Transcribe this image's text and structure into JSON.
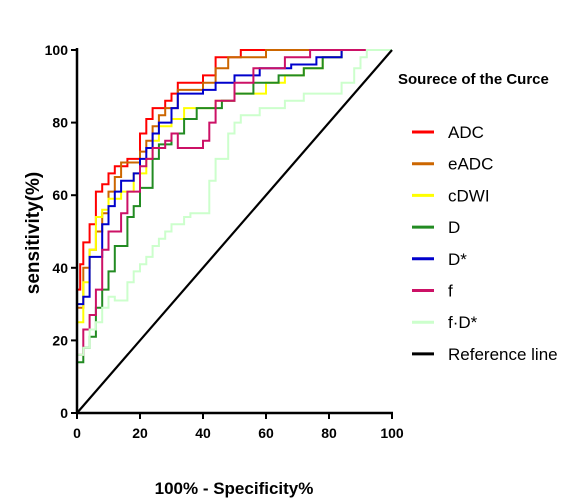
{
  "chart_data": {
    "type": "line",
    "title": "",
    "xlabel": "100% - Specificity%",
    "ylabel": "sensitivity(%)",
    "xlim": [
      0,
      100
    ],
    "ylim": [
      0,
      100
    ],
    "xticks": [
      0,
      20,
      40,
      60,
      80,
      100
    ],
    "yticks": [
      0,
      20,
      40,
      60,
      80,
      100
    ],
    "legend_title": "Sourece of the Curce",
    "legend_position": "right",
    "series": [
      {
        "name": "ADC",
        "color": "#ff0000",
        "points": [
          [
            0,
            0
          ],
          [
            0,
            34
          ],
          [
            1,
            34
          ],
          [
            1,
            41
          ],
          [
            2,
            41
          ],
          [
            2,
            47
          ],
          [
            4,
            47
          ],
          [
            4,
            52
          ],
          [
            6,
            52
          ],
          [
            6,
            61
          ],
          [
            8,
            61
          ],
          [
            8,
            63
          ],
          [
            10,
            63
          ],
          [
            10,
            66
          ],
          [
            12,
            66
          ],
          [
            12,
            68
          ],
          [
            16,
            68
          ],
          [
            16,
            70
          ],
          [
            20,
            70
          ],
          [
            20,
            77
          ],
          [
            22,
            77
          ],
          [
            22,
            81
          ],
          [
            24,
            81
          ],
          [
            24,
            84
          ],
          [
            28,
            84
          ],
          [
            28,
            86
          ],
          [
            30,
            86
          ],
          [
            30,
            88
          ],
          [
            32,
            88
          ],
          [
            32,
            91
          ],
          [
            40,
            91
          ],
          [
            40,
            93
          ],
          [
            44,
            93
          ],
          [
            44,
            98
          ],
          [
            52,
            98
          ],
          [
            52,
            100
          ],
          [
            100,
            100
          ]
        ]
      },
      {
        "name": "eADC",
        "color": "#cc6600",
        "points": [
          [
            0,
            0
          ],
          [
            0,
            29
          ],
          [
            2,
            29
          ],
          [
            2,
            40
          ],
          [
            4,
            40
          ],
          [
            4,
            45
          ],
          [
            6,
            45
          ],
          [
            6,
            50
          ],
          [
            8,
            50
          ],
          [
            8,
            55
          ],
          [
            10,
            55
          ],
          [
            10,
            61
          ],
          [
            12,
            61
          ],
          [
            12,
            65
          ],
          [
            14,
            65
          ],
          [
            14,
            69
          ],
          [
            20,
            69
          ],
          [
            20,
            72
          ],
          [
            22,
            72
          ],
          [
            22,
            75
          ],
          [
            24,
            75
          ],
          [
            24,
            79
          ],
          [
            26,
            79
          ],
          [
            26,
            82
          ],
          [
            28,
            82
          ],
          [
            28,
            84
          ],
          [
            32,
            84
          ],
          [
            32,
            89
          ],
          [
            40,
            89
          ],
          [
            40,
            91
          ],
          [
            44,
            91
          ],
          [
            44,
            95
          ],
          [
            48,
            95
          ],
          [
            48,
            98
          ],
          [
            60,
            98
          ],
          [
            60,
            100
          ],
          [
            100,
            100
          ]
        ]
      },
      {
        "name": "cDWI",
        "color": "#ffff00",
        "points": [
          [
            0,
            0
          ],
          [
            0,
            25
          ],
          [
            2,
            25
          ],
          [
            2,
            36
          ],
          [
            4,
            36
          ],
          [
            4,
            45
          ],
          [
            6,
            45
          ],
          [
            6,
            54
          ],
          [
            8,
            54
          ],
          [
            8,
            56
          ],
          [
            10,
            56
          ],
          [
            10,
            59
          ],
          [
            14,
            59
          ],
          [
            14,
            61
          ],
          [
            18,
            61
          ],
          [
            18,
            66
          ],
          [
            22,
            66
          ],
          [
            22,
            70
          ],
          [
            24,
            70
          ],
          [
            24,
            75
          ],
          [
            26,
            75
          ],
          [
            26,
            79
          ],
          [
            30,
            79
          ],
          [
            30,
            81
          ],
          [
            34,
            81
          ],
          [
            34,
            84
          ],
          [
            44,
            84
          ],
          [
            44,
            86
          ],
          [
            50,
            86
          ],
          [
            50,
            88
          ],
          [
            60,
            88
          ],
          [
            60,
            91
          ],
          [
            66,
            91
          ],
          [
            66,
            93
          ],
          [
            72,
            93
          ],
          [
            72,
            95
          ],
          [
            78,
            95
          ],
          [
            78,
            98
          ],
          [
            84,
            98
          ],
          [
            84,
            100
          ],
          [
            100,
            100
          ]
        ]
      },
      {
        "name": "D",
        "color": "#228b22",
        "points": [
          [
            0,
            0
          ],
          [
            0,
            14
          ],
          [
            2,
            14
          ],
          [
            2,
            18
          ],
          [
            4,
            18
          ],
          [
            4,
            21
          ],
          [
            6,
            21
          ],
          [
            6,
            29
          ],
          [
            8,
            29
          ],
          [
            8,
            34
          ],
          [
            10,
            34
          ],
          [
            10,
            39
          ],
          [
            12,
            39
          ],
          [
            12,
            46
          ],
          [
            16,
            46
          ],
          [
            16,
            54
          ],
          [
            18,
            54
          ],
          [
            18,
            57
          ],
          [
            20,
            57
          ],
          [
            20,
            62
          ],
          [
            24,
            62
          ],
          [
            24,
            70
          ],
          [
            26,
            70
          ],
          [
            26,
            74
          ],
          [
            30,
            74
          ],
          [
            30,
            77
          ],
          [
            34,
            77
          ],
          [
            34,
            81
          ],
          [
            38,
            81
          ],
          [
            38,
            84
          ],
          [
            46,
            84
          ],
          [
            46,
            86
          ],
          [
            50,
            86
          ],
          [
            50,
            88
          ],
          [
            56,
            88
          ],
          [
            56,
            91
          ],
          [
            64,
            91
          ],
          [
            64,
            93
          ],
          [
            72,
            93
          ],
          [
            72,
            95
          ],
          [
            78,
            95
          ],
          [
            78,
            98
          ],
          [
            84,
            98
          ],
          [
            84,
            100
          ],
          [
            100,
            100
          ]
        ]
      },
      {
        "name": "D*",
        "color": "#0000cc",
        "points": [
          [
            0,
            0
          ],
          [
            0,
            30
          ],
          [
            2,
            30
          ],
          [
            2,
            32
          ],
          [
            4,
            32
          ],
          [
            4,
            43
          ],
          [
            8,
            43
          ],
          [
            8,
            52
          ],
          [
            10,
            52
          ],
          [
            10,
            57
          ],
          [
            12,
            57
          ],
          [
            12,
            61
          ],
          [
            14,
            61
          ],
          [
            14,
            64
          ],
          [
            18,
            64
          ],
          [
            18,
            66
          ],
          [
            20,
            66
          ],
          [
            20,
            70
          ],
          [
            22,
            70
          ],
          [
            22,
            73
          ],
          [
            24,
            73
          ],
          [
            24,
            77
          ],
          [
            26,
            77
          ],
          [
            26,
            80
          ],
          [
            30,
            80
          ],
          [
            30,
            84
          ],
          [
            32,
            84
          ],
          [
            32,
            88
          ],
          [
            40,
            88
          ],
          [
            40,
            89
          ],
          [
            44,
            89
          ],
          [
            44,
            91
          ],
          [
            50,
            91
          ],
          [
            50,
            93
          ],
          [
            58,
            93
          ],
          [
            58,
            95
          ],
          [
            68,
            95
          ],
          [
            68,
            96
          ],
          [
            76,
            96
          ],
          [
            76,
            98
          ],
          [
            84,
            98
          ],
          [
            84,
            100
          ],
          [
            100,
            100
          ]
        ]
      },
      {
        "name": "f",
        "color": "#cc1166",
        "points": [
          [
            0,
            0
          ],
          [
            0,
            16
          ],
          [
            2,
            16
          ],
          [
            2,
            23
          ],
          [
            4,
            23
          ],
          [
            4,
            27
          ],
          [
            6,
            27
          ],
          [
            6,
            34
          ],
          [
            8,
            34
          ],
          [
            8,
            45
          ],
          [
            10,
            45
          ],
          [
            10,
            50
          ],
          [
            14,
            50
          ],
          [
            14,
            55
          ],
          [
            16,
            55
          ],
          [
            16,
            61
          ],
          [
            20,
            61
          ],
          [
            20,
            68
          ],
          [
            22,
            68
          ],
          [
            22,
            70
          ],
          [
            24,
            70
          ],
          [
            24,
            73
          ],
          [
            28,
            73
          ],
          [
            28,
            75
          ],
          [
            30,
            75
          ],
          [
            30,
            77
          ],
          [
            32,
            77
          ],
          [
            32,
            73
          ],
          [
            40,
            73
          ],
          [
            40,
            75
          ],
          [
            42,
            75
          ],
          [
            42,
            80
          ],
          [
            44,
            80
          ],
          [
            44,
            86
          ],
          [
            50,
            86
          ],
          [
            50,
            91
          ],
          [
            56,
            91
          ],
          [
            56,
            95
          ],
          [
            66,
            95
          ],
          [
            66,
            98
          ],
          [
            74,
            98
          ],
          [
            74,
            100
          ],
          [
            100,
            100
          ]
        ]
      },
      {
        "name": "f·D*",
        "color": "#ccffcc",
        "points": [
          [
            0,
            0
          ],
          [
            0,
            16
          ],
          [
            2,
            16
          ],
          [
            2,
            18
          ],
          [
            4,
            18
          ],
          [
            4,
            23
          ],
          [
            6,
            23
          ],
          [
            6,
            25
          ],
          [
            8,
            25
          ],
          [
            8,
            29
          ],
          [
            10,
            29
          ],
          [
            10,
            32
          ],
          [
            12,
            32
          ],
          [
            12,
            31
          ],
          [
            16,
            31
          ],
          [
            16,
            36
          ],
          [
            18,
            36
          ],
          [
            18,
            39
          ],
          [
            20,
            39
          ],
          [
            20,
            41
          ],
          [
            22,
            41
          ],
          [
            22,
            43
          ],
          [
            24,
            43
          ],
          [
            24,
            46
          ],
          [
            26,
            46
          ],
          [
            26,
            48
          ],
          [
            28,
            48
          ],
          [
            28,
            50
          ],
          [
            30,
            50
          ],
          [
            30,
            52
          ],
          [
            34,
            52
          ],
          [
            34,
            54
          ],
          [
            36,
            54
          ],
          [
            36,
            55
          ],
          [
            42,
            55
          ],
          [
            42,
            64
          ],
          [
            44,
            64
          ],
          [
            44,
            70
          ],
          [
            48,
            70
          ],
          [
            48,
            77
          ],
          [
            50,
            77
          ],
          [
            50,
            80
          ],
          [
            52,
            80
          ],
          [
            52,
            82
          ],
          [
            58,
            82
          ],
          [
            58,
            84
          ],
          [
            66,
            84
          ],
          [
            66,
            86
          ],
          [
            72,
            86
          ],
          [
            72,
            88
          ],
          [
            84,
            88
          ],
          [
            84,
            91
          ],
          [
            88,
            91
          ],
          [
            88,
            95
          ],
          [
            90,
            95
          ],
          [
            90,
            98
          ],
          [
            92,
            98
          ],
          [
            92,
            100
          ],
          [
            100,
            100
          ]
        ]
      },
      {
        "name": "Reference line",
        "color": "#000000",
        "points": [
          [
            0,
            0
          ],
          [
            100,
            100
          ]
        ]
      }
    ]
  }
}
